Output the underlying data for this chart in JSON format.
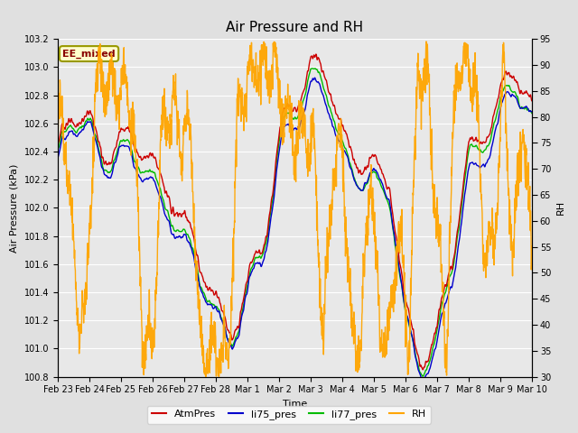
{
  "title": "Air Pressure and RH",
  "xlabel": "Time",
  "ylabel_left": "Air Pressure (kPa)",
  "ylabel_right": "RH",
  "annotation": "EE_mixed",
  "ylim_left": [
    100.8,
    103.2
  ],
  "ylim_right": [
    30,
    95
  ],
  "yticks_left": [
    100.8,
    101.0,
    101.2,
    101.4,
    101.6,
    101.8,
    102.0,
    102.2,
    102.4,
    102.6,
    102.8,
    103.0,
    103.2
  ],
  "yticks_right": [
    30,
    35,
    40,
    45,
    50,
    55,
    60,
    65,
    70,
    75,
    80,
    85,
    90,
    95
  ],
  "colors": {
    "AtmPres": "#cc0000",
    "li75_pres": "#0000cc",
    "li77_pres": "#00bb00",
    "RH": "#ffa500"
  },
  "legend_labels": [
    "AtmPres",
    "li75_pres",
    "li77_pres",
    "RH"
  ],
  "bg_color": "#e0e0e0",
  "plot_bg_color": "#e8e8e8",
  "grid_color": "#ffffff",
  "annotation_bg": "#ffffcc",
  "annotation_border": "#999900",
  "x_ticks_labels": [
    "Feb 23",
    "Feb 24",
    "Feb 25",
    "Feb 26",
    "Feb 27",
    "Feb 28",
    "Mar 1",
    "Mar 2",
    "Mar 3",
    "Mar 4",
    "Mar 5",
    "Mar 6",
    "Mar 7",
    "Mar 8",
    "Mar 9",
    "Mar 10"
  ],
  "linewidth": 1.0,
  "title_fontsize": 11,
  "label_fontsize": 8,
  "tick_fontsize": 7,
  "legend_fontsize": 8,
  "annotation_fontsize": 8
}
